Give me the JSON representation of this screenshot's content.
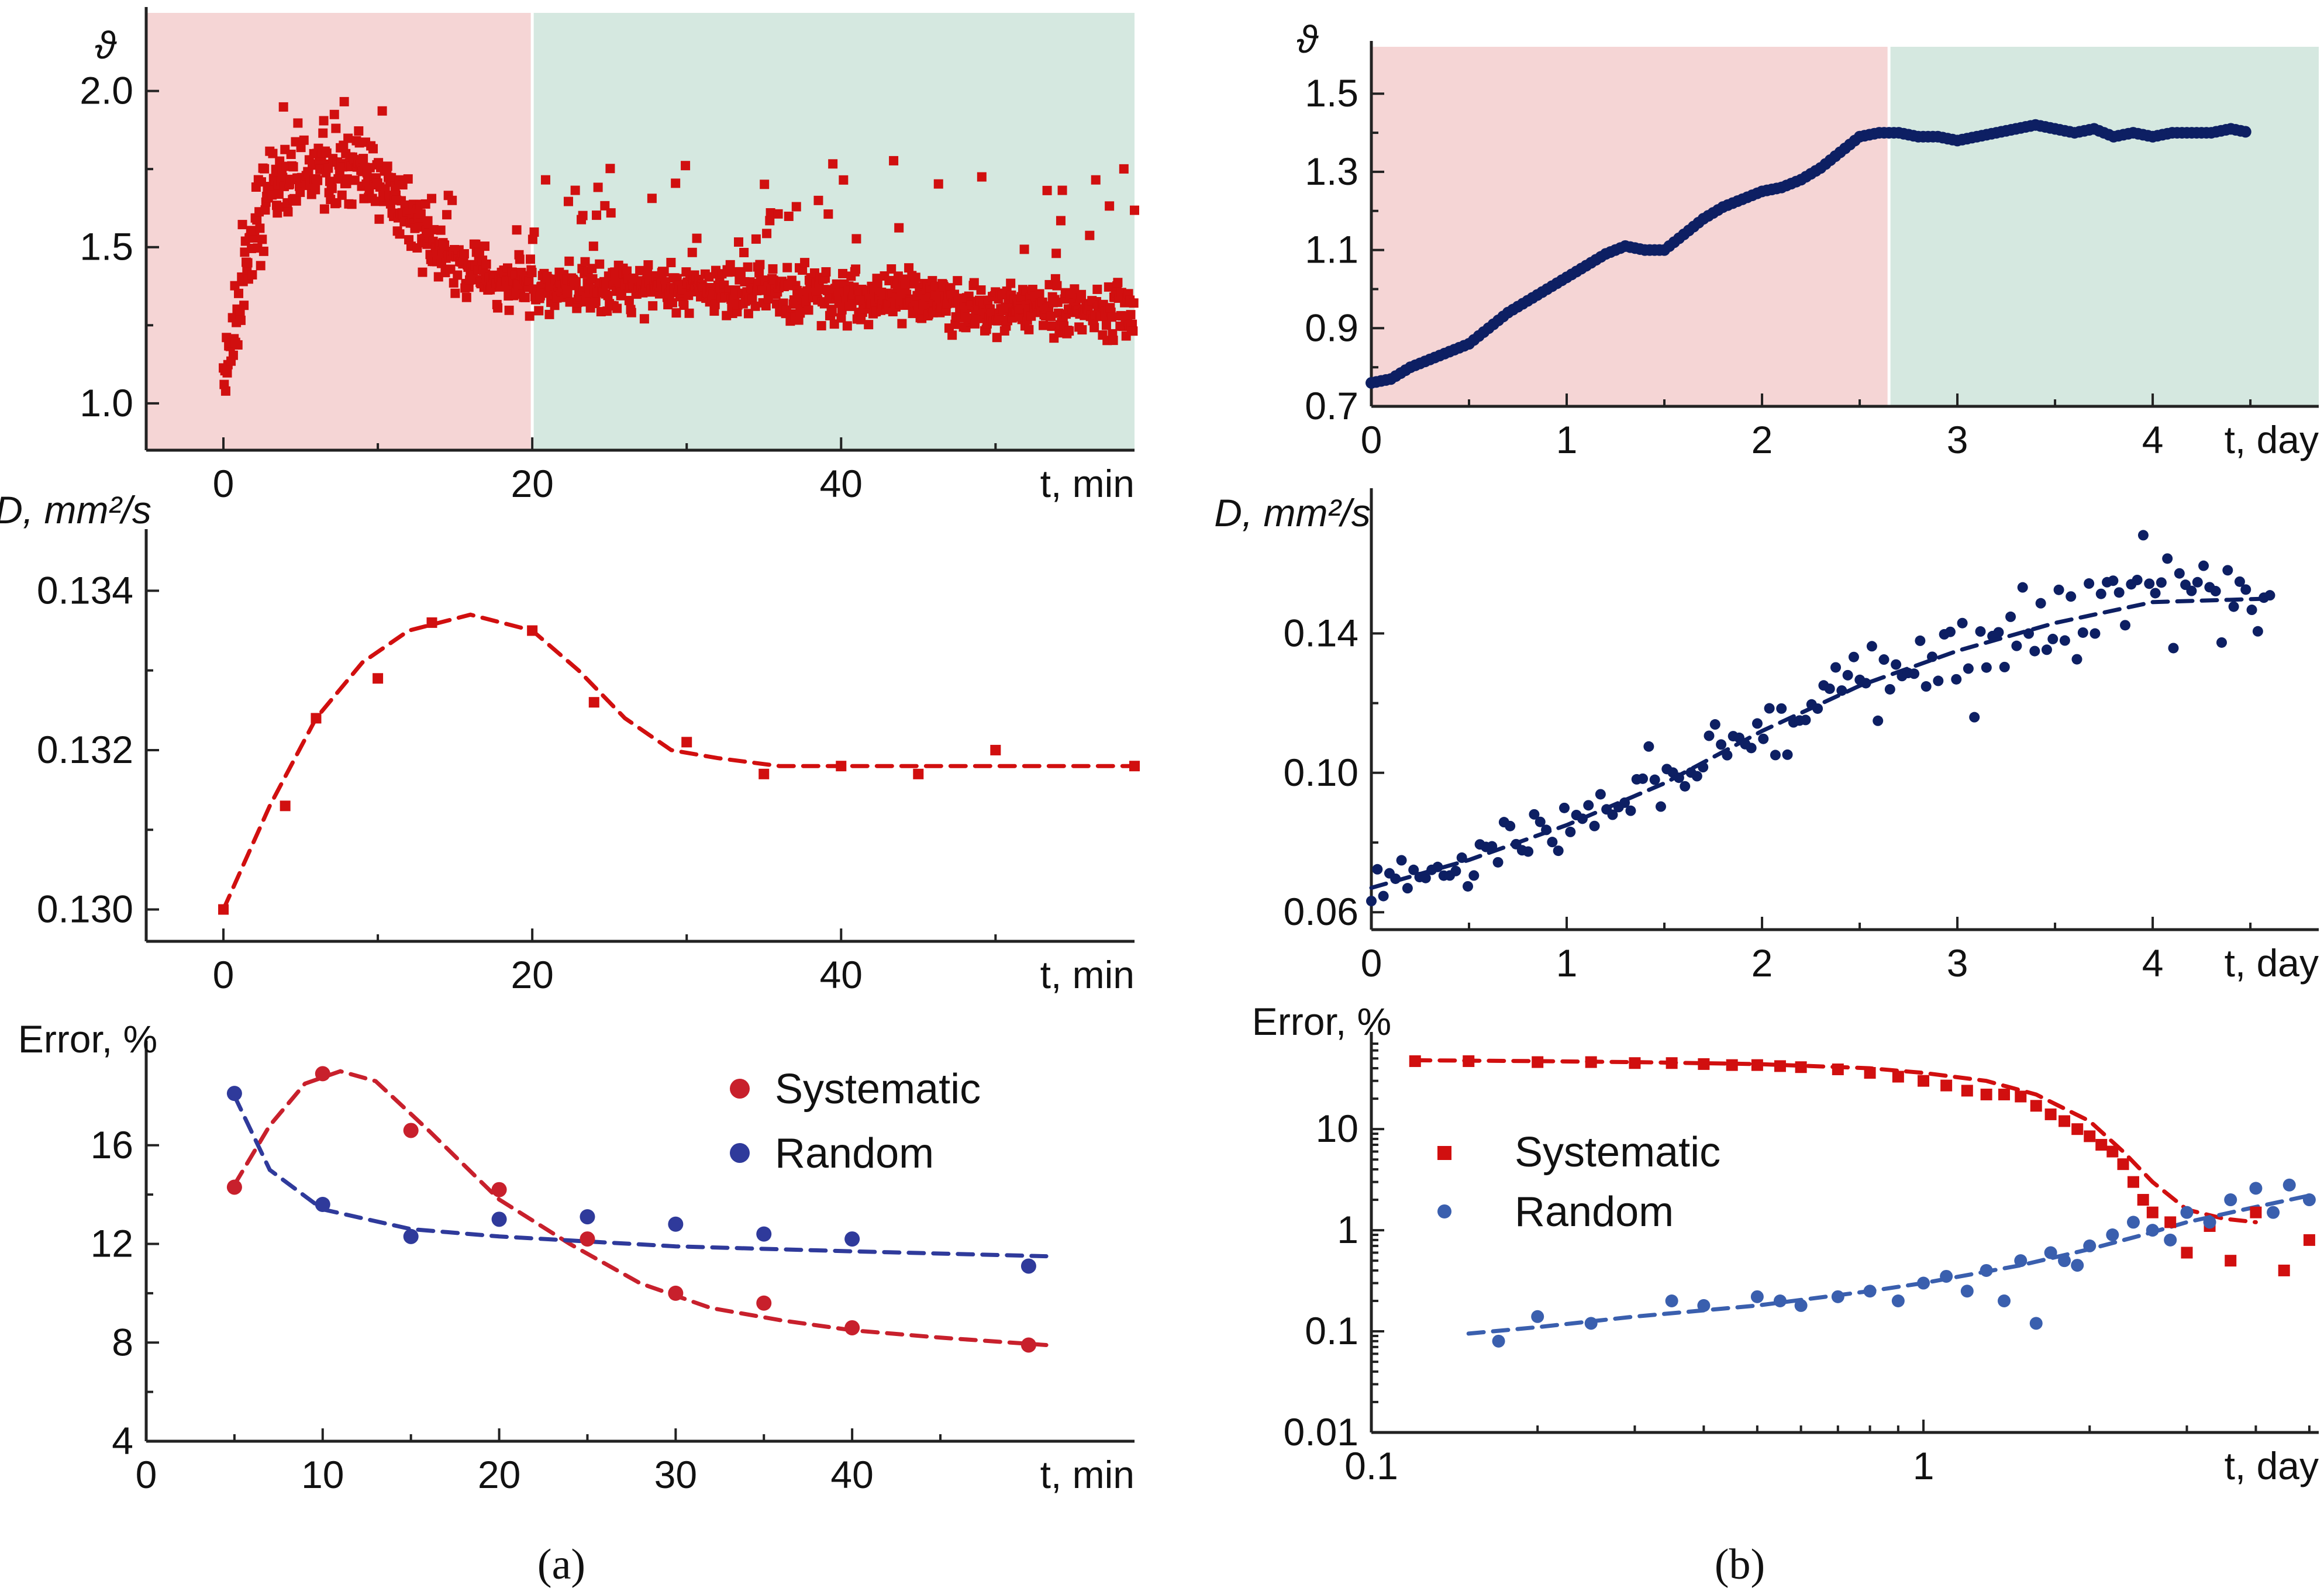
{
  "panels": {
    "a": {
      "caption": "(a)"
    },
    "b": {
      "caption": "(b)"
    }
  },
  "colors": {
    "red": "#d10f0f",
    "red_error": "#c8202c",
    "navy": "#0d1f63",
    "blue_error": "#2f3a9b",
    "blue_b": "#3a5fae",
    "bg_transient": "#f5d5d5",
    "bg_steady": "#d5e8e0"
  },
  "chart_data": [
    {
      "id": "a_theta",
      "type": "scatter",
      "title": "",
      "ylabel": "ϑ",
      "xlabel": "t, min",
      "xlim": [
        -5,
        59
      ],
      "ylim": [
        0.85,
        2.25
      ],
      "xticks": [
        0,
        20,
        40
      ],
      "yticks": [
        1.0,
        1.5,
        2.0
      ],
      "ytick_labels": [
        "1.0",
        "1.5",
        "2.0"
      ],
      "regions": [
        {
          "from": -5,
          "to": 20,
          "kind": "transient"
        },
        {
          "from": 20,
          "to": 59,
          "kind": "steady"
        }
      ],
      "series": [
        {
          "name": "ϑ",
          "color": "#d10f0f",
          "marker": "square",
          "count": 1200,
          "mean_profile": "rise 1.07→1.75 by 6 min, decay to 1.38 by 18 min, slow drift to 1.30 at 59 min",
          "noise": 0.05
        }
      ]
    },
    {
      "id": "b_theta",
      "type": "scatter",
      "ylabel": "ϑ",
      "xlabel": "t, day",
      "xlim": [
        0,
        4.85
      ],
      "ylim": [
        0.7,
        1.62
      ],
      "xticks": [
        0,
        1,
        2,
        3,
        4
      ],
      "yticks": [
        0.7,
        0.9,
        1.1,
        1.3,
        1.5
      ],
      "ytick_labels": [
        "0.7",
        "0.9",
        "1.1",
        "1.3",
        "1.5"
      ],
      "regions": [
        {
          "from": 0,
          "to": 2.65,
          "kind": "transient"
        },
        {
          "from": 2.65,
          "to": 4.85,
          "kind": "steady"
        }
      ],
      "series": [
        {
          "name": "ϑ",
          "color": "#0d1f63",
          "marker": "circle",
          "x": [
            0.0,
            0.1,
            0.2,
            0.3,
            0.4,
            0.5,
            0.6,
            0.7,
            0.8,
            0.9,
            1.0,
            1.1,
            1.2,
            1.3,
            1.4,
            1.5,
            1.6,
            1.7,
            1.8,
            1.9,
            2.0,
            2.1,
            2.2,
            2.3,
            2.4,
            2.5,
            2.6,
            2.7,
            2.8,
            2.9,
            3.0,
            3.1,
            3.2,
            3.3,
            3.4,
            3.5,
            3.6,
            3.7,
            3.8,
            3.9,
            4.0,
            4.1,
            4.2,
            4.3,
            4.4,
            4.5
          ],
          "y": [
            0.76,
            0.77,
            0.8,
            0.82,
            0.84,
            0.86,
            0.9,
            0.94,
            0.97,
            1.0,
            1.03,
            1.06,
            1.09,
            1.11,
            1.1,
            1.1,
            1.14,
            1.18,
            1.21,
            1.23,
            1.25,
            1.26,
            1.28,
            1.31,
            1.35,
            1.39,
            1.4,
            1.4,
            1.39,
            1.39,
            1.38,
            1.39,
            1.4,
            1.41,
            1.42,
            1.41,
            1.4,
            1.41,
            1.39,
            1.4,
            1.39,
            1.4,
            1.4,
            1.4,
            1.41,
            1.4
          ]
        }
      ]
    },
    {
      "id": "a_D",
      "type": "scatter",
      "ylabel": "D, mm²/s",
      "xlabel": "t, min",
      "xlim": [
        -5,
        59
      ],
      "ylim": [
        0.1296,
        0.1347
      ],
      "xticks": [
        0,
        20,
        40
      ],
      "yticks": [
        0.13,
        0.132,
        0.134
      ],
      "ytick_labels": [
        "0.130",
        "0.132",
        "0.134"
      ],
      "series": [
        {
          "name": "D",
          "color": "#d10f0f",
          "marker": "square",
          "x": [
            0,
            4,
            6,
            10,
            13.5,
            20,
            24,
            30,
            35,
            40,
            45,
            50,
            59
          ],
          "y": [
            0.13,
            0.1313,
            0.1324,
            0.1329,
            0.1336,
            0.1335,
            0.1326,
            0.1321,
            0.1317,
            0.1318,
            0.1317,
            0.132,
            0.1318
          ]
        },
        {
          "name": "fit",
          "color": "#d10f0f",
          "style": "dashed",
          "x": [
            0,
            3,
            6,
            9,
            12,
            16,
            20,
            23,
            26,
            29,
            32,
            36,
            40,
            45,
            50,
            55,
            59
          ],
          "y": [
            0.13,
            0.1313,
            0.1324,
            0.1331,
            0.1335,
            0.1337,
            0.1335,
            0.133,
            0.1324,
            0.132,
            0.1319,
            0.1318,
            0.1318,
            0.1318,
            0.1318,
            0.1318,
            0.1318
          ]
        }
      ]
    },
    {
      "id": "b_D",
      "type": "scatter",
      "ylabel": "D, mm²/s",
      "xlabel": "t, day",
      "xlim": [
        0,
        4.85
      ],
      "ylim": [
        0.055,
        0.18
      ],
      "xticks": [
        0,
        1,
        2,
        3,
        4
      ],
      "yticks": [
        0.06,
        0.1,
        0.14
      ],
      "ytick_labels": [
        "0.06",
        "0.10",
        "0.14"
      ],
      "series": [
        {
          "name": "D",
          "color": "#0d1f63",
          "marker": "circle",
          "count": 150,
          "noise": 0.004,
          "x_range": [
            0,
            4.6
          ],
          "mean_x": [
            0,
            0.5,
            1.0,
            1.5,
            2.0,
            2.5,
            3.0,
            3.5,
            4.0,
            4.6
          ],
          "mean_y": [
            0.067,
            0.075,
            0.085,
            0.097,
            0.112,
            0.125,
            0.135,
            0.143,
            0.149,
            0.15
          ]
        },
        {
          "name": "fit",
          "color": "#0d1f63",
          "style": "dashed",
          "x": [
            0,
            0.5,
            1.0,
            1.5,
            2.0,
            2.5,
            3.0,
            3.5,
            4.0,
            4.6
          ],
          "y": [
            0.067,
            0.075,
            0.085,
            0.097,
            0.112,
            0.125,
            0.135,
            0.143,
            0.149,
            0.15
          ]
        }
      ]
    },
    {
      "id": "a_error",
      "type": "scatter",
      "ylabel": "Error, %",
      "xlabel": "t, min",
      "xlim": [
        0,
        56
      ],
      "ylim": [
        4,
        20
      ],
      "xticks": [
        0,
        10,
        20,
        30,
        40
      ],
      "yticks": [
        4,
        8,
        12,
        16
      ],
      "ytick_labels": [
        "4",
        "8",
        "12",
        "16"
      ],
      "legend": {
        "position": "top-right",
        "entries": [
          "Systematic",
          "Random"
        ]
      },
      "series": [
        {
          "name": "Systematic",
          "color": "#c8202c",
          "marker": "circle",
          "x": [
            5,
            10,
            15,
            20,
            25,
            30,
            35,
            40,
            50
          ],
          "y": [
            14.3,
            18.9,
            16.6,
            14.2,
            12.2,
            10.0,
            9.6,
            8.6,
            7.9
          ]
        },
        {
          "name": "Random",
          "color": "#2f3a9b",
          "marker": "circle",
          "x": [
            5,
            10,
            15,
            20,
            25,
            30,
            35,
            40,
            50
          ],
          "y": [
            18.1,
            13.6,
            12.3,
            13.0,
            13.1,
            12.8,
            12.4,
            12.2,
            11.1
          ]
        },
        {
          "name": "Systematic fit",
          "color": "#c8202c",
          "style": "dashed",
          "x": [
            5,
            7,
            9,
            11,
            13,
            16,
            20,
            24,
            28,
            32,
            36,
            40,
            45,
            51
          ],
          "y": [
            14.4,
            16.8,
            18.5,
            19.0,
            18.6,
            16.6,
            13.8,
            12.0,
            10.4,
            9.4,
            8.9,
            8.5,
            8.2,
            7.9
          ]
        },
        {
          "name": "Random fit",
          "color": "#2f3a9b",
          "style": "dashed",
          "x": [
            5,
            7,
            10,
            15,
            20,
            25,
            30,
            40,
            51
          ],
          "y": [
            18.0,
            15.0,
            13.4,
            12.6,
            12.3,
            12.1,
            11.9,
            11.7,
            11.5
          ]
        }
      ]
    },
    {
      "id": "b_error",
      "type": "scatter",
      "ylabel": "Error, %",
      "xlabel": "t, day",
      "xscale": "log",
      "yscale": "log",
      "xlim": [
        0.1,
        5.2
      ],
      "ylim": [
        0.01,
        80
      ],
      "xticks": [
        0.1,
        1
      ],
      "xtick_labels": [
        "0.1",
        "1"
      ],
      "yticks": [
        0.01,
        0.1,
        1,
        10
      ],
      "ytick_labels": [
        "0.01",
        "0.1",
        "1",
        "10"
      ],
      "legend": {
        "position": "middle-left",
        "entries": [
          "Systematic",
          "Random"
        ]
      },
      "series": [
        {
          "name": "Systematic",
          "color": "#d10f0f",
          "marker": "square",
          "x": [
            0.12,
            0.15,
            0.2,
            0.25,
            0.3,
            0.35,
            0.4,
            0.45,
            0.5,
            0.55,
            0.6,
            0.7,
            0.8,
            0.9,
            1.0,
            1.1,
            1.2,
            1.3,
            1.4,
            1.5,
            1.6,
            1.7,
            1.8,
            1.9,
            2.0,
            2.1,
            2.2,
            2.3,
            2.4,
            2.5,
            2.6,
            2.8,
            3.0,
            3.3,
            3.6,
            4.0,
            4.5,
            5.0
          ],
          "y": [
            47,
            47,
            46,
            46,
            45,
            45,
            44,
            43,
            43,
            42,
            41,
            39,
            36,
            33,
            30,
            27,
            24,
            22,
            22,
            21,
            17,
            14,
            12,
            10,
            8.5,
            7,
            6,
            4.5,
            3,
            2,
            1.5,
            1.2,
            0.6,
            1.1,
            0.5,
            1.5,
            0.4,
            0.8
          ]
        },
        {
          "name": "Random",
          "color": "#3a5fae",
          "marker": "circle",
          "x": [
            0.17,
            0.2,
            0.25,
            0.35,
            0.4,
            0.5,
            0.55,
            0.6,
            0.7,
            0.8,
            0.9,
            1.0,
            1.1,
            1.2,
            1.3,
            1.4,
            1.5,
            1.6,
            1.7,
            1.8,
            1.9,
            2.0,
            2.2,
            2.4,
            2.6,
            2.8,
            3.0,
            3.3,
            3.6,
            4.0,
            4.3,
            4.6,
            5.0
          ],
          "y": [
            0.08,
            0.14,
            0.12,
            0.2,
            0.18,
            0.22,
            0.2,
            0.18,
            0.22,
            0.25,
            0.2,
            0.3,
            0.35,
            0.25,
            0.4,
            0.2,
            0.5,
            0.12,
            0.6,
            0.5,
            0.45,
            0.7,
            0.9,
            1.2,
            1.0,
            0.8,
            1.5,
            1.2,
            2.0,
            2.6,
            1.5,
            2.8,
            2.0
          ]
        },
        {
          "name": "Systematic fit",
          "color": "#d10f0f",
          "style": "dashed",
          "x": [
            0.12,
            0.2,
            0.3,
            0.5,
            0.8,
            1.0,
            1.3,
            1.6,
            2.0,
            2.3,
            2.6,
            3.0,
            3.5,
            4.0
          ],
          "y": [
            48,
            47,
            46,
            44,
            40,
            36,
            30,
            22,
            12,
            6,
            3,
            1.6,
            1.3,
            1.2
          ]
        },
        {
          "name": "Random fit",
          "color": "#3a5fae",
          "style": "dashed",
          "x": [
            0.15,
            0.2,
            0.3,
            0.5,
            0.8,
            1.0,
            1.5,
            2.0,
            2.5,
            3.0,
            4.0,
            5.0
          ],
          "y": [
            0.095,
            0.11,
            0.14,
            0.18,
            0.25,
            0.3,
            0.45,
            0.65,
            0.9,
            1.2,
            1.7,
            2.2
          ]
        }
      ]
    }
  ]
}
